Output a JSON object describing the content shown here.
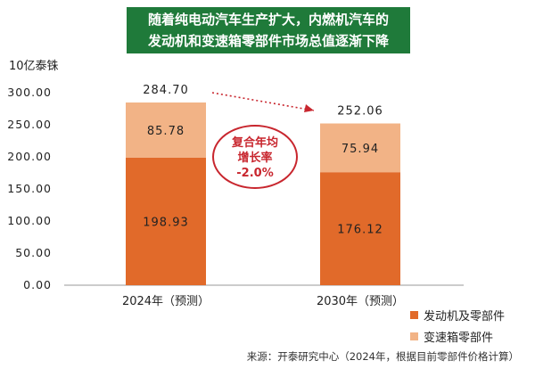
{
  "title": {
    "line1": "随着纯电动汽车生产扩大，内燃机汽车的",
    "line2": "发动机和变速箱零部件市场总值逐渐下降"
  },
  "cagr": {
    "line1": "复合年均",
    "line2": "增长率",
    "line3": "-2.0%"
  },
  "source": "来源：开泰研究中心（2024年，根据目前零部件价格计算）",
  "colors": {
    "engine": "#e16a2a",
    "transmission": "#f2b386",
    "title_bg": "#1f7a3a",
    "accent": "#c8262e"
  },
  "chart_data": {
    "type": "bar",
    "stacked": true,
    "ylabel": "10亿泰铢",
    "ylim": [
      0,
      300
    ],
    "yticks": [
      "0.00",
      "50.00",
      "100.00",
      "150.00",
      "200.00",
      "250.00",
      "300.00"
    ],
    "categories": [
      "2024年（预测）",
      "2030年（预测）"
    ],
    "series": [
      {
        "name": "发动机及零部件",
        "values": [
          198.93,
          176.12
        ],
        "labels": [
          "198.93",
          "176.12"
        ]
      },
      {
        "name": "变速箱零部件",
        "values": [
          85.78,
          75.94
        ],
        "labels": [
          "85.78",
          "75.94"
        ]
      }
    ],
    "totals": [
      "284.70",
      "252.06"
    ],
    "grid": false,
    "legend_position": "bottom-right"
  }
}
